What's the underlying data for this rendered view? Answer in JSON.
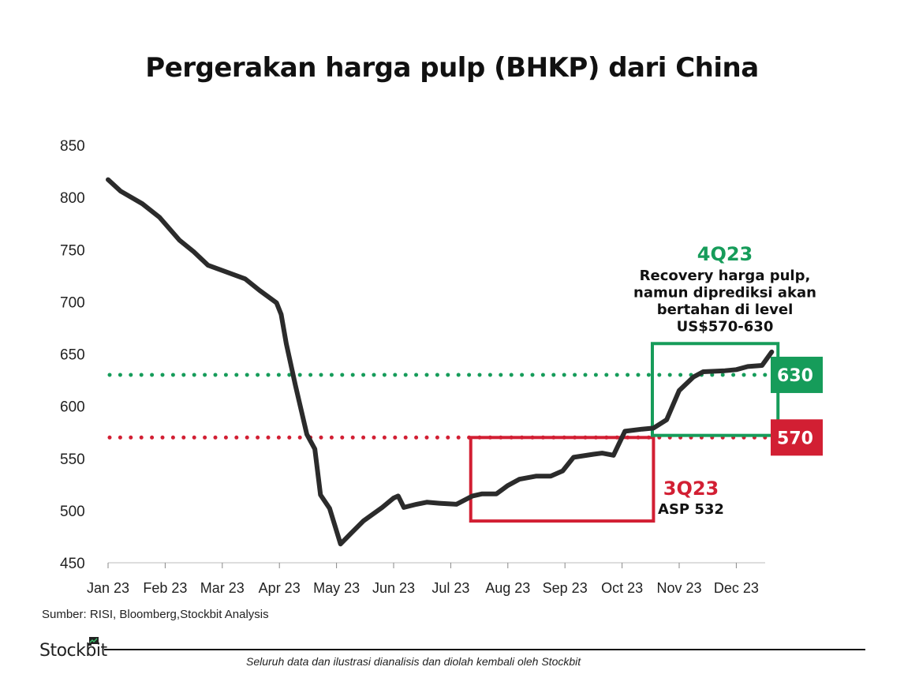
{
  "chart_data": {
    "type": "line",
    "title": "Pergerakan harga pulp (BHKP) dari China",
    "xlabel": "",
    "ylabel": "",
    "ylim": [
      450,
      850
    ],
    "yticks": [
      "450",
      "500",
      "550",
      "600",
      "650",
      "700",
      "750",
      "800",
      "850"
    ],
    "categories": [
      "Jan 23",
      "Feb 23",
      "Mar 23",
      "Apr 23",
      "May 23",
      "Jun 23",
      "Jul 23",
      "Aug 23",
      "Sep 23",
      "Oct 23",
      "Nov 23",
      "Dec 23"
    ],
    "grid": false,
    "series": [
      {
        "color": "#2b2b2b",
        "points": [
          [
            0.0,
            817
          ],
          [
            0.22,
            806
          ],
          [
            0.6,
            794
          ],
          [
            0.9,
            781
          ],
          [
            1.25,
            759
          ],
          [
            1.5,
            748
          ],
          [
            1.75,
            735
          ],
          [
            2.1,
            728
          ],
          [
            2.4,
            722
          ],
          [
            2.65,
            711
          ],
          [
            2.95,
            699
          ],
          [
            3.03,
            688
          ],
          [
            3.12,
            660
          ],
          [
            3.28,
            620
          ],
          [
            3.48,
            573
          ],
          [
            3.62,
            559
          ],
          [
            3.72,
            515
          ],
          [
            3.88,
            502
          ],
          [
            4.07,
            468
          ],
          [
            4.25,
            478
          ],
          [
            4.47,
            490
          ],
          [
            4.8,
            503
          ],
          [
            5.0,
            512
          ],
          [
            5.08,
            514
          ],
          [
            5.18,
            503
          ],
          [
            5.4,
            506
          ],
          [
            5.58,
            508
          ],
          [
            5.8,
            507
          ],
          [
            6.1,
            506
          ],
          [
            6.38,
            514
          ],
          [
            6.55,
            516
          ],
          [
            6.8,
            516
          ],
          [
            7.0,
            524
          ],
          [
            7.2,
            530
          ],
          [
            7.5,
            533
          ],
          [
            7.75,
            533
          ],
          [
            7.96,
            538
          ],
          [
            8.15,
            551
          ],
          [
            8.5,
            554
          ],
          [
            8.65,
            555
          ],
          [
            8.85,
            553
          ],
          [
            9.05,
            576
          ],
          [
            9.35,
            578
          ],
          [
            9.55,
            579
          ],
          [
            9.78,
            587
          ],
          [
            10.0,
            615
          ],
          [
            10.25,
            628
          ],
          [
            10.42,
            633
          ],
          [
            10.8,
            634
          ],
          [
            11.0,
            635
          ],
          [
            11.2,
            638
          ],
          [
            11.45,
            639
          ],
          [
            11.62,
            652
          ]
        ]
      }
    ],
    "reference_lines": [
      {
        "value": 630,
        "color": "#169c5a",
        "style": "dotted",
        "label": "630"
      },
      {
        "value": 570,
        "color": "#d21f33",
        "style": "dotted",
        "label": "570"
      }
    ],
    "annotations": [
      {
        "id": "3q23",
        "color": "#d21f33",
        "box": {
          "x0": 6.35,
          "x1": 9.55,
          "y0": 490,
          "y1": 570
        },
        "heading": "3Q23",
        "lines": [
          "ASP 532"
        ]
      },
      {
        "id": "4q23",
        "color": "#169c5a",
        "box": {
          "x0": 9.53,
          "x1": 11.73,
          "y0": 572,
          "y1": 660
        },
        "heading": "4Q23",
        "lines": [
          "Recovery harga pulp,",
          "namun diprediksi akan",
          "bertahan di level",
          "US$570-630"
        ]
      }
    ]
  },
  "source": "Sumber: RISI, Bloomberg,Stockbit Analysis",
  "brand": "Stockbit",
  "disclaimer": "Seluruh data dan ilustrasi dianalisis dan diolah kembali oleh Stockbit",
  "colors": {
    "line": "#2b2b2b",
    "green": "#169c5a",
    "red": "#d21f33",
    "text": "#111111"
  }
}
